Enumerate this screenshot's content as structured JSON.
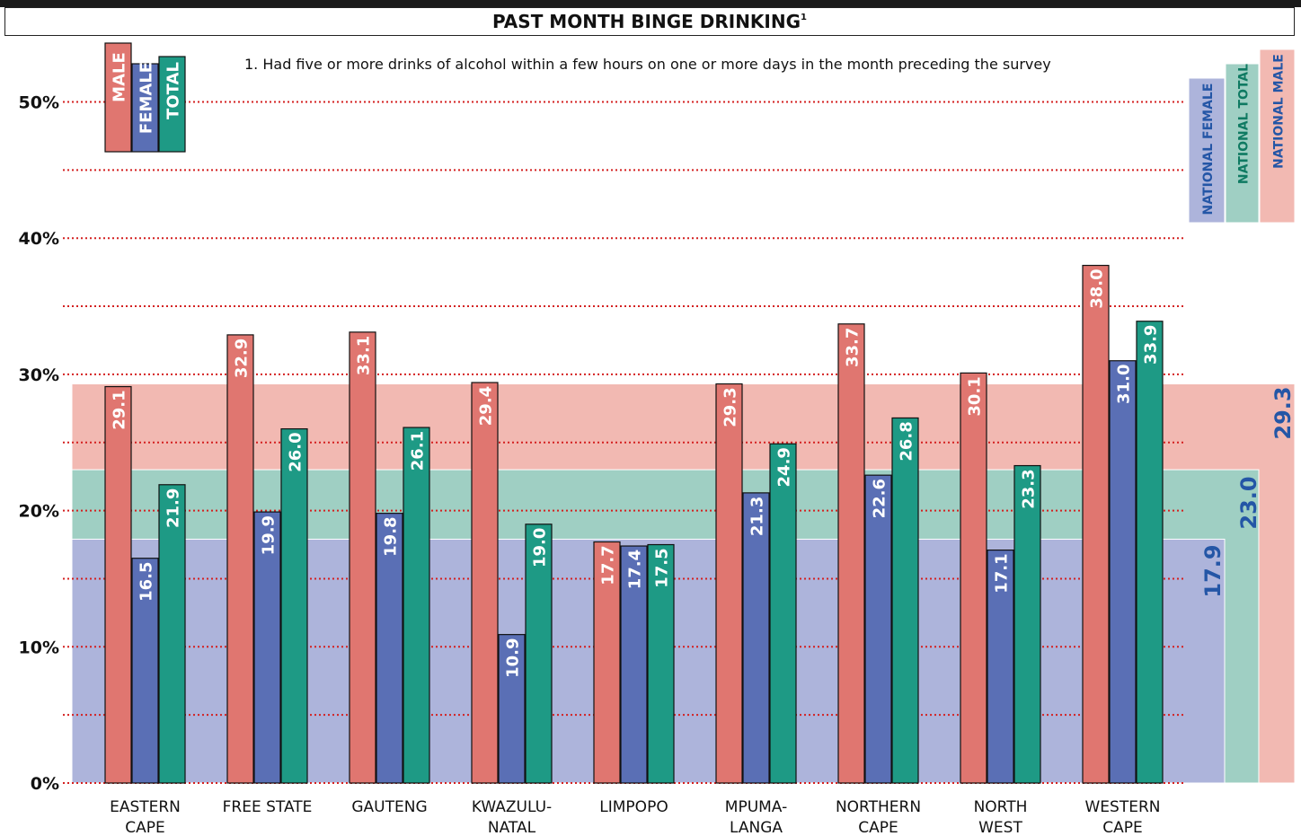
{
  "title": "PAST MONTH BINGE DRINKING",
  "title_superscript": "1",
  "footnote": "1. Had five or more drinks of alcohol within a few hours on one or more days in the month preceding the survey",
  "colors": {
    "male": "#e07670",
    "female": "#5a6fb5",
    "total": "#1e9a85",
    "national_male_band": "#f2b9b2",
    "national_total_band": "#9fcfc3",
    "national_female_band": "#adb4db",
    "national_value_text": "#2456a6",
    "grid": "#d42020"
  },
  "legend": {
    "male": "MALE",
    "female": "FEMALE",
    "total": "TOTAL"
  },
  "national_labels": {
    "female": "NATIONAL FEMALE",
    "total": "NATIONAL TOTAL",
    "male": "NATIONAL MALE"
  },
  "chart_data": {
    "type": "bar",
    "categories": [
      [
        "EASTERN",
        "CAPE"
      ],
      [
        "FREE STATE"
      ],
      [
        "GAUTENG"
      ],
      [
        "KWAZULU-",
        "NATAL"
      ],
      [
        "LIMPOPO"
      ],
      [
        "MPUMA-",
        "LANGA"
      ],
      [
        "NORTHERN",
        "CAPE"
      ],
      [
        "NORTH",
        "WEST"
      ],
      [
        "WESTERN",
        "CAPE"
      ]
    ],
    "series": [
      {
        "name": "MALE",
        "values": [
          29.1,
          32.9,
          33.1,
          29.4,
          17.7,
          29.3,
          33.7,
          30.1,
          38.0
        ]
      },
      {
        "name": "FEMALE",
        "values": [
          16.5,
          19.9,
          19.8,
          10.9,
          17.4,
          21.3,
          22.6,
          17.1,
          31.0
        ]
      },
      {
        "name": "TOTAL",
        "values": [
          21.9,
          26.0,
          26.1,
          19.0,
          17.5,
          24.9,
          26.8,
          23.3,
          33.9
        ]
      }
    ],
    "national": {
      "male": 29.3,
      "total": 23.0,
      "female": 17.9
    },
    "yticks": [
      0,
      10,
      20,
      30,
      40,
      50
    ],
    "ytick_labels": [
      "0%",
      "10%",
      "20%",
      "30%",
      "40%",
      "50%"
    ],
    "minor_gridlines": [
      5,
      15,
      25,
      35,
      45
    ],
    "ylim": [
      0,
      55
    ],
    "legend_position": "top-left",
    "grid": true
  }
}
